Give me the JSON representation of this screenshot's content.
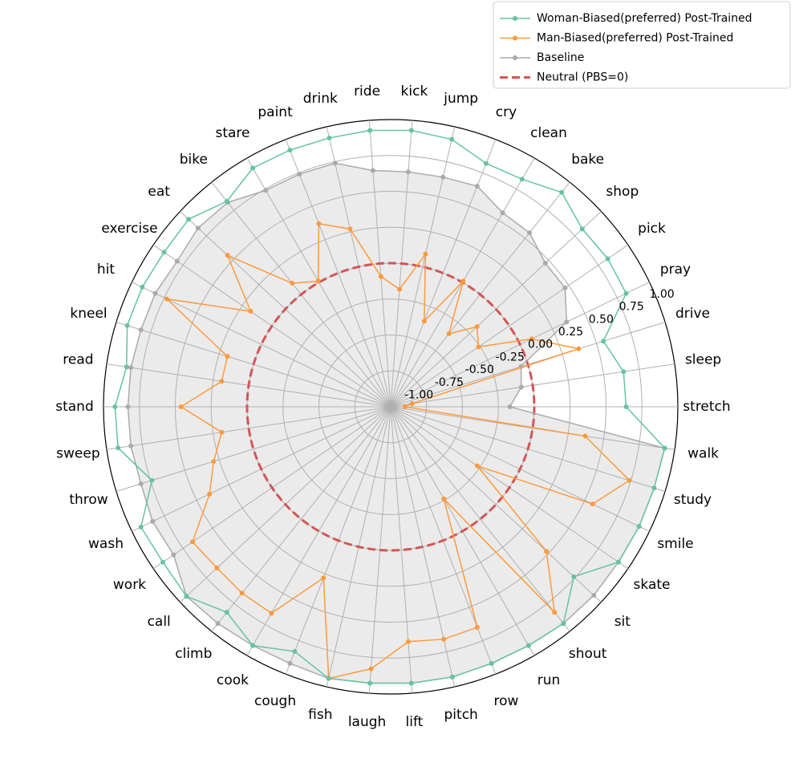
{
  "chart_data": {
    "type": "radar",
    "categories": [
      "stretch",
      "sleep",
      "drive",
      "pray",
      "pick",
      "shop",
      "bake",
      "clean",
      "cry",
      "jump",
      "kick",
      "ride",
      "drink",
      "paint",
      "stare",
      "bike",
      "eat",
      "exercise",
      "hit",
      "kneel",
      "read",
      "stand",
      "sweep",
      "throw",
      "wash",
      "work",
      "call",
      "climb",
      "cook",
      "cough",
      "fish",
      "laugh",
      "lift",
      "pitch",
      "row",
      "run",
      "shout",
      "sit",
      "skate",
      "smile",
      "study",
      "walk"
    ],
    "series": [
      {
        "name": "Woman-Biased(preferred) Post-Trained",
        "color": "#66c2a5",
        "values": [
          0.64,
          0.64,
          0.55,
          0.82,
          0.83,
          0.82,
          0.91,
          0.83,
          0.82,
          0.91,
          0.93,
          0.93,
          0.92,
          0.92,
          0.92,
          0.83,
          0.92,
          0.91,
          0.92,
          0.92,
          0.86,
          0.92,
          0.92,
          0.74,
          0.93,
          0.92,
          0.94,
          0.83,
          0.92,
          0.83,
          0.94,
          0.93,
          0.93,
          0.93,
          0.92,
          0.92,
          0.93,
          0.74,
          0.92,
          0.92,
          0.92,
          0.93
        ]
      },
      {
        "name": "Man-Biased(preferred) Post-Trained",
        "color": "#fd9a3c",
        "values": [
          -0.9,
          -0.85,
          0.37,
          0.09,
          -0.26,
          -0.18,
          -0.35,
          0.01,
          -0.36,
          0.09,
          -0.18,
          -0.09,
          0.27,
          0.37,
          0.01,
          0.1,
          0.55,
          0.18,
          0.73,
          0.19,
          0.19,
          0.46,
          0.19,
          0.29,
          0.4,
          0.67,
          0.65,
          0.66,
          0.66,
          0.28,
          0.94,
          0.83,
          0.64,
          0.66,
          0.65,
          -0.26,
          0.83,
          0.48,
          -0.27,
          0.56,
          0.74,
          0.37
        ]
      },
      {
        "name": "Baseline",
        "color": "#aaaaaa",
        "fill": true,
        "values": [
          -0.17,
          -0.08,
          -0.05,
          0.36,
          0.47,
          0.47,
          0.55,
          0.56,
          0.65,
          0.64,
          0.64,
          0.65,
          0.74,
          0.74,
          0.74,
          0.82,
          0.83,
          0.8,
          0.82,
          0.82,
          0.83,
          0.83,
          0.83,
          0.82,
          0.84,
          0.83,
          0.94,
          0.93,
          0.92,
          0.92,
          0.94,
          0.93,
          0.93,
          0.93,
          0.92,
          0.92,
          0.93,
          0.93,
          0.92,
          0.92,
          0.92,
          0.93
        ]
      }
    ],
    "reference_line": {
      "name": "Neutral (PBS=0)",
      "value": 0,
      "color": "#d45555",
      "style": "dashed"
    },
    "ylim": [
      -1,
      1
    ],
    "yticks": [
      {
        "value": -1,
        "label": "-1.00"
      },
      {
        "value": -0.75,
        "label": "-0.75"
      },
      {
        "value": -0.5,
        "label": "-0.50"
      },
      {
        "value": -0.25,
        "label": "-0.25"
      },
      {
        "value": 0,
        "label": "0.00"
      },
      {
        "value": 0.25,
        "label": "0.25"
      },
      {
        "value": 0.5,
        "label": "0.50"
      },
      {
        "value": 0.75,
        "label": "0.75"
      },
      {
        "value": 1,
        "label": "1.00"
      }
    ],
    "grid": true,
    "legend": "upper right"
  }
}
